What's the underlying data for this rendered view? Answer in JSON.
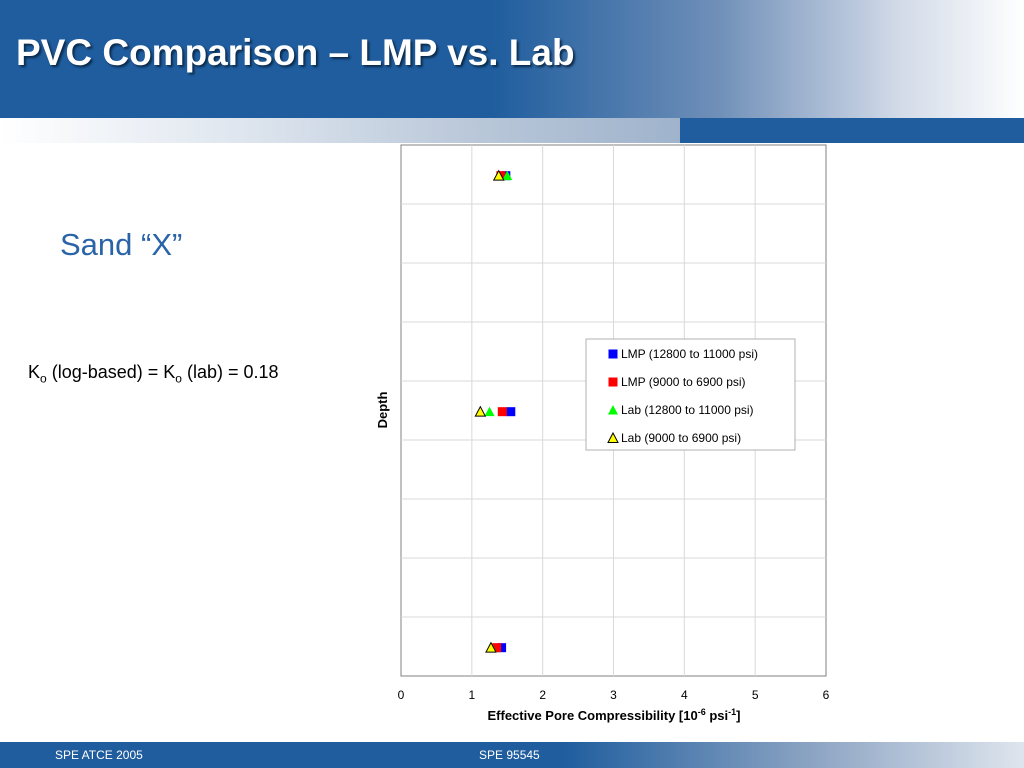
{
  "slide": {
    "title": "PVC Comparison – LMP vs. Lab",
    "subtitle": "Sand “X”",
    "note": {
      "k1": "K",
      "sub1": "o",
      "mid": " (log-based) = K",
      "sub2": "o",
      "end": " (lab) = 0.18"
    },
    "footer_left": "SPE ATCE 2005",
    "footer_right": "SPE 95545"
  },
  "colors": {
    "header_blue": "#1f5d9e",
    "subtitle_blue": "#2a64a8",
    "lmp_high": "#0000ff",
    "lmp_low": "#ff0000",
    "lab_high": "#00ff00",
    "lab_low": "#ffff00"
  },
  "chart_data": {
    "type": "scatter",
    "xlabel": "Effective Pore Compressibility [10",
    "xlabel_sup1": "-6",
    "xlabel_mid": " psi",
    "xlabel_sup2": "-1",
    "xlabel_end": "]",
    "ylabel": "Depth",
    "xlim": [
      0,
      6
    ],
    "x_ticks": [
      "0",
      "1",
      "2",
      "3",
      "4",
      "5",
      "6"
    ],
    "y_ticks_shown": false,
    "grid": true,
    "legend_position": "right-middle",
    "series": [
      {
        "name": "LMP (12800 to 11000 psi)",
        "marker": "square",
        "color": "#0000ff",
        "x": [
          1.48,
          1.55,
          1.42
        ],
        "depth_level": [
          1,
          2,
          3
        ]
      },
      {
        "name": "LMP (9000 to 6900 psi)",
        "marker": "square",
        "color": "#ff0000",
        "x": [
          1.41,
          1.43,
          1.35
        ],
        "depth_level": [
          1,
          2,
          3
        ]
      },
      {
        "name": "Lab (12800 to 11000 psi)",
        "marker": "triangle",
        "color": "#00ff00",
        "x": [
          1.5,
          1.25,
          1.28
        ],
        "depth_level": [
          1,
          2,
          3
        ]
      },
      {
        "name": "Lab (9000 to 6900 psi)",
        "marker": "triangle",
        "color": "#ffff00",
        "x": [
          1.38,
          1.12,
          1.27
        ],
        "depth_level": [
          1,
          2,
          3
        ]
      }
    ]
  }
}
